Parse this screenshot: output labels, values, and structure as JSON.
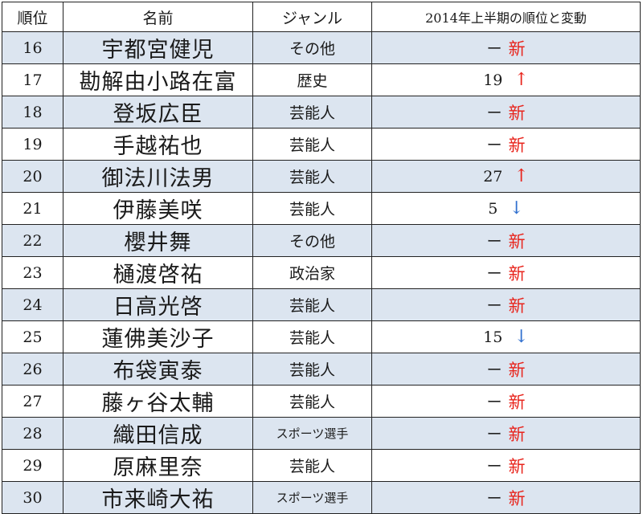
{
  "headers": {
    "rank": "順位",
    "name": "名前",
    "genre": "ジャンル",
    "change": "2014年上半期の順位と変動"
  },
  "colors": {
    "shaded_row": "#dce5f0",
    "new_marker": "#e8241c",
    "up_arrow": "#e8241c",
    "down_arrow": "#2f6fcf"
  },
  "rows": [
    {
      "rank": "16",
      "name": "宇都宮健児",
      "genre": "その他",
      "dash": "ー",
      "new": "新"
    },
    {
      "rank": "17",
      "name": "勘解由小路在富",
      "genre": "歴史",
      "prev": "19",
      "arrow": "↑"
    },
    {
      "rank": "18",
      "name": "登坂広臣",
      "genre": "芸能人",
      "dash": "ー",
      "new": "新"
    },
    {
      "rank": "19",
      "name": "手越祐也",
      "genre": "芸能人",
      "dash": "ー",
      "new": "新"
    },
    {
      "rank": "20",
      "name": "御法川法男",
      "genre": "芸能人",
      "prev": "27",
      "arrow": "↑"
    },
    {
      "rank": "21",
      "name": "伊藤美咲",
      "genre": "芸能人",
      "prev": "5",
      "arrow": "↓"
    },
    {
      "rank": "22",
      "name": "櫻井舞",
      "genre": "その他",
      "dash": "ー",
      "new": "新"
    },
    {
      "rank": "23",
      "name": "樋渡啓祐",
      "genre": "政治家",
      "dash": "ー",
      "new": "新"
    },
    {
      "rank": "24",
      "name": "日高光啓",
      "genre": "芸能人",
      "dash": "ー",
      "new": "新"
    },
    {
      "rank": "25",
      "name": "蓮佛美沙子",
      "genre": "芸能人",
      "prev": "15",
      "arrow": "↓"
    },
    {
      "rank": "26",
      "name": "布袋寅泰",
      "genre": "芸能人",
      "dash": "ー",
      "new": "新"
    },
    {
      "rank": "27",
      "name": "藤ヶ谷太輔",
      "genre": "芸能人",
      "dash": "ー",
      "new": "新"
    },
    {
      "rank": "28",
      "name": "織田信成",
      "genre": "スポーツ選手",
      "dash": "ー",
      "new": "新"
    },
    {
      "rank": "29",
      "name": "原麻里奈",
      "genre": "芸能人",
      "dash": "ー",
      "new": "新"
    },
    {
      "rank": "30",
      "name": "市来崎大祐",
      "genre": "スポーツ選手",
      "dash": "ー",
      "new": "新"
    }
  ]
}
